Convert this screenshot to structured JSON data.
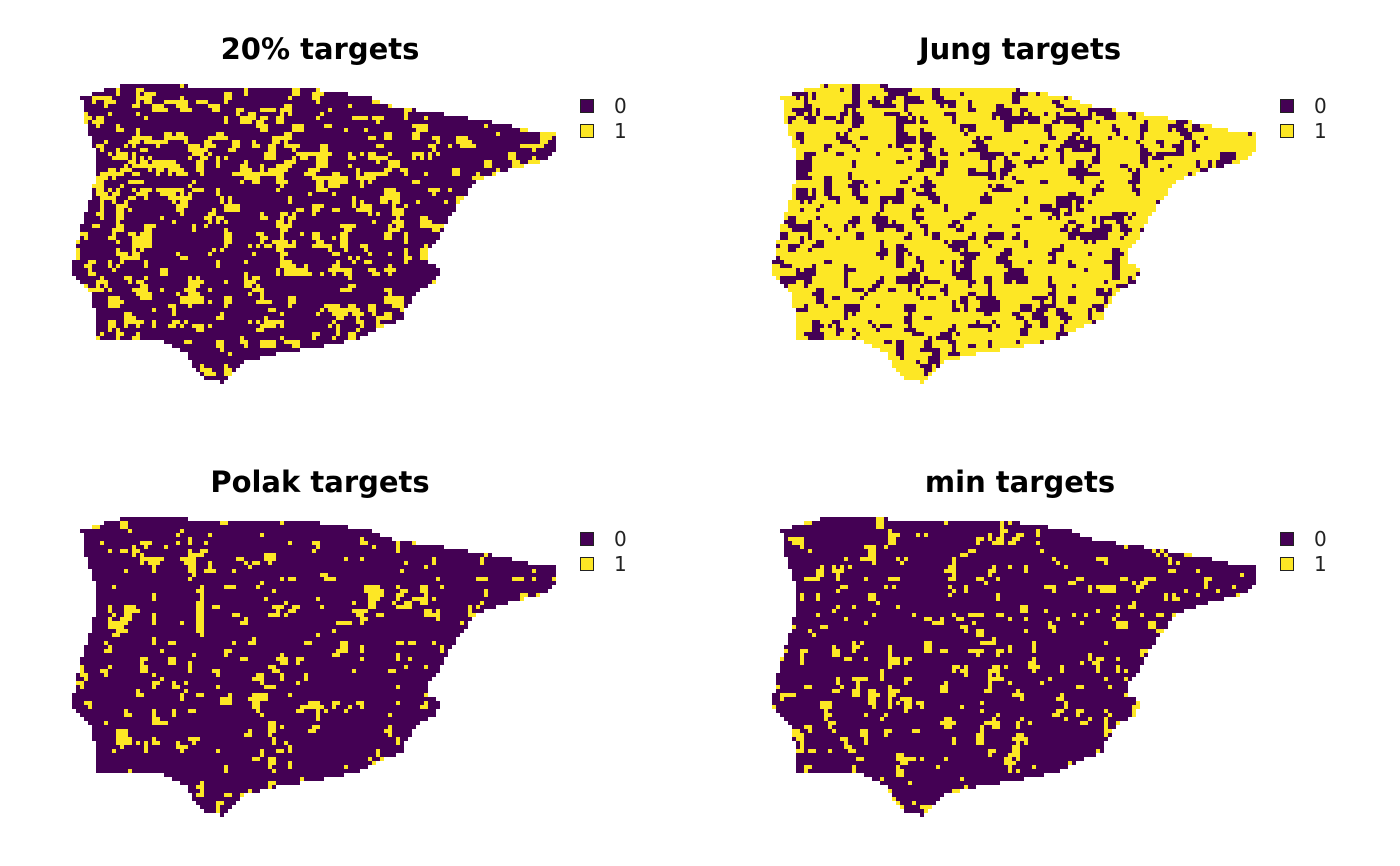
{
  "palette": {
    "unselected": "#440154",
    "selected": "#FDE725"
  },
  "panels": [
    {
      "title": "20% targets",
      "selected_fraction": 0.22,
      "seed": 11,
      "legend": [
        {
          "label": "0",
          "color": "#440154"
        },
        {
          "label": "1",
          "color": "#FDE725"
        }
      ]
    },
    {
      "title": "Jung targets",
      "selected_fraction": 0.75,
      "seed": 23,
      "legend": [
        {
          "label": "0",
          "color": "#440154"
        },
        {
          "label": "1",
          "color": "#FDE725"
        }
      ]
    },
    {
      "title": "Polak targets",
      "selected_fraction": 0.1,
      "seed": 37,
      "legend": [
        {
          "label": "0",
          "color": "#440154"
        },
        {
          "label": "1",
          "color": "#FDE725"
        }
      ]
    },
    {
      "title": "min targets",
      "selected_fraction": 0.11,
      "seed": 53,
      "legend": [
        {
          "label": "0",
          "color": "#440154"
        },
        {
          "label": "1",
          "color": "#FDE725"
        }
      ]
    }
  ]
}
